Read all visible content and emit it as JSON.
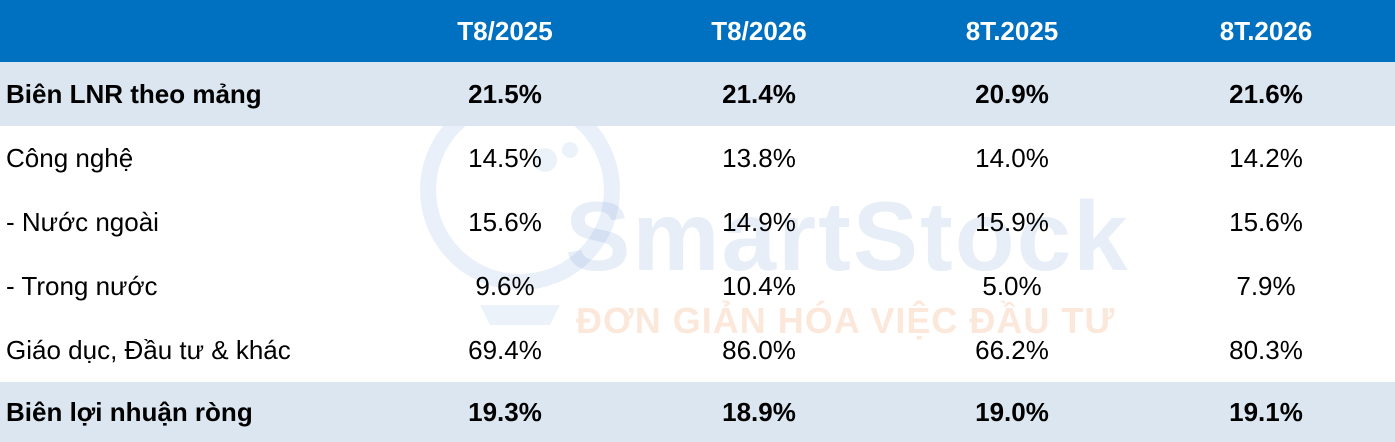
{
  "header": {
    "label": "",
    "columns": [
      "T8/2025",
      "T8/2026",
      "8T.2025",
      "8T.2026"
    ]
  },
  "rows": [
    {
      "label": "Biên LNR theo mảng",
      "values": [
        "21.5%",
        "21.4%",
        "20.9%",
        "21.6%"
      ],
      "style": "highlight"
    },
    {
      "label": "Công nghệ",
      "values": [
        "14.5%",
        "13.8%",
        "14.0%",
        "14.2%"
      ],
      "style": "plain"
    },
    {
      "label": "- Nước ngoài",
      "values": [
        "15.6%",
        "14.9%",
        "15.9%",
        "15.6%"
      ],
      "style": "plain"
    },
    {
      "label": "- Trong nước",
      "values": [
        "9.6%",
        "10.4%",
        "5.0%",
        "7.9%"
      ],
      "style": "plain"
    },
    {
      "label": "Giáo dục, Đầu tư & khác",
      "values": [
        "69.4%",
        "86.0%",
        "66.2%",
        "80.3%"
      ],
      "style": "plain"
    },
    {
      "label": "Biên lợi nhuận ròng",
      "values": [
        "19.3%",
        "18.9%",
        "19.0%",
        "19.1%"
      ],
      "style": "highlight"
    }
  ],
  "watermark": {
    "brand": "SmartStock",
    "tagline": "ĐƠN GIẢN HÓA VIỆC ĐẦU TƯ"
  },
  "colors": {
    "header_bg": "#0070c0",
    "header_text": "#ffffff",
    "highlight_bg": "#dce6f1"
  }
}
